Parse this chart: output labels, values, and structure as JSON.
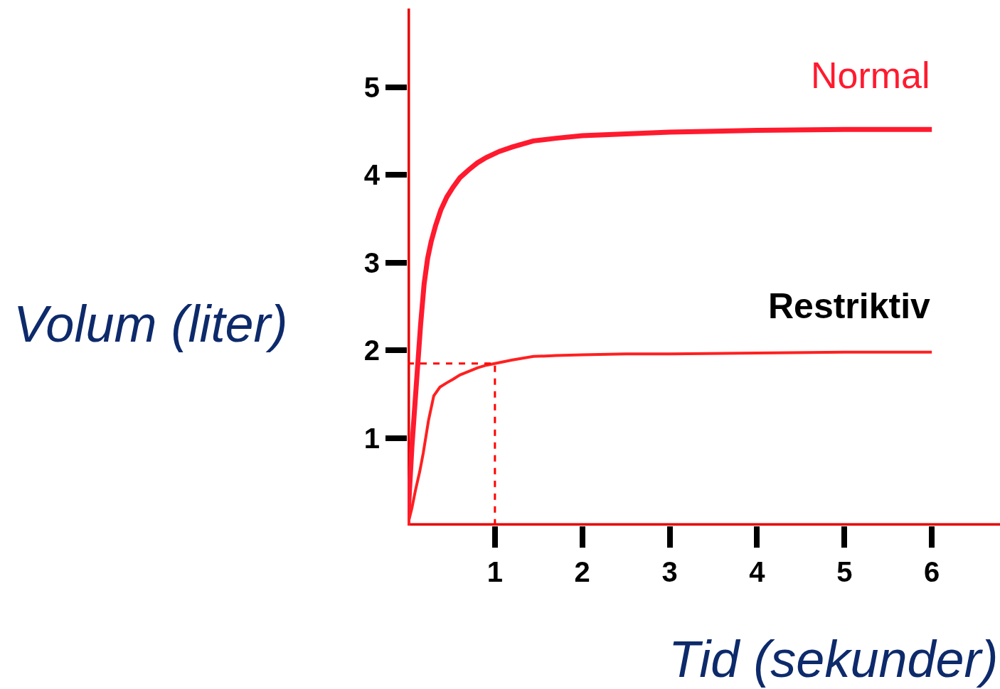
{
  "chart_data": {
    "type": "line",
    "xlabel": "Tid (sekunder)",
    "ylabel": "Volum (liter)",
    "xlim": [
      0,
      6.78
    ],
    "ylim": [
      0,
      5.9
    ],
    "xticks": [
      1,
      2,
      3,
      4,
      5,
      6
    ],
    "yticks": [
      1,
      2,
      3,
      4,
      5
    ],
    "legend": false,
    "marker": "none",
    "series": [
      {
        "name": "Normal",
        "color": "#ff1a2e",
        "x": [
          0,
          0.05,
          0.1,
          0.15,
          0.19,
          0.23,
          0.27,
          0.32,
          0.38,
          0.45,
          0.52,
          0.6,
          0.7,
          0.8,
          0.9,
          1.05,
          1.2,
          1.44,
          1.7,
          2.0,
          2.5,
          3.0,
          4.0,
          5.0,
          6.0
        ],
        "values": [
          0,
          0.9,
          1.6,
          2.3,
          2.76,
          3.05,
          3.24,
          3.42,
          3.6,
          3.75,
          3.86,
          3.97,
          4.06,
          4.14,
          4.2,
          4.27,
          4.32,
          4.39,
          4.42,
          4.45,
          4.47,
          4.49,
          4.51,
          4.52,
          4.52
        ]
      },
      {
        "name": "Restriktiv",
        "color": "#ff2020",
        "x": [
          0,
          0.05,
          0.09,
          0.14,
          0.18,
          0.24,
          0.3,
          0.37,
          0.45,
          0.52,
          0.6,
          0.7,
          0.8,
          0.9,
          1.05,
          1.2,
          1.44,
          1.7,
          2.0,
          2.5,
          3.0,
          4.0,
          5.0,
          6.0
        ],
        "values": [
          0,
          0.2,
          0.4,
          0.62,
          0.83,
          1.2,
          1.48,
          1.58,
          1.63,
          1.67,
          1.72,
          1.76,
          1.8,
          1.83,
          1.86,
          1.89,
          1.93,
          1.94,
          1.95,
          1.96,
          1.96,
          1.97,
          1.98,
          1.98
        ]
      },
      {
        "color": "#ff0000",
        "line_style": "dashed",
        "x": [
          0,
          1,
          1
        ],
        "values": [
          1.85,
          1.85,
          0
        ]
      }
    ]
  }
}
